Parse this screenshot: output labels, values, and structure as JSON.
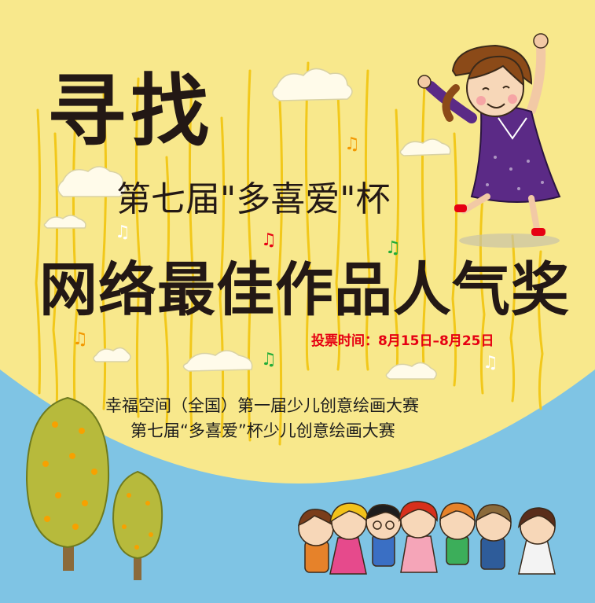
{
  "poster": {
    "headline": "寻找",
    "edition": "第七届\"多喜爱\"杯",
    "award": "网络最佳作品人气奖",
    "vote_period": "投票时间：8月15日–8月25日",
    "organizers": [
      "幸福空间（全国）第一届少儿创意绘画大赛",
      "第七届“多喜爱”杯少儿创意绘画大赛"
    ]
  },
  "colors": {
    "background_yellow": "#f8e88c",
    "sky_blue": "#7fc4e4",
    "stripe_yellow": "#f2c81a",
    "vote_red": "#e60012",
    "girl_dress": "#5b2a86"
  },
  "icons": [
    "cloud-icon",
    "music-note-icon",
    "tree-icon",
    "girl-illustration",
    "children-group-illustration"
  ]
}
